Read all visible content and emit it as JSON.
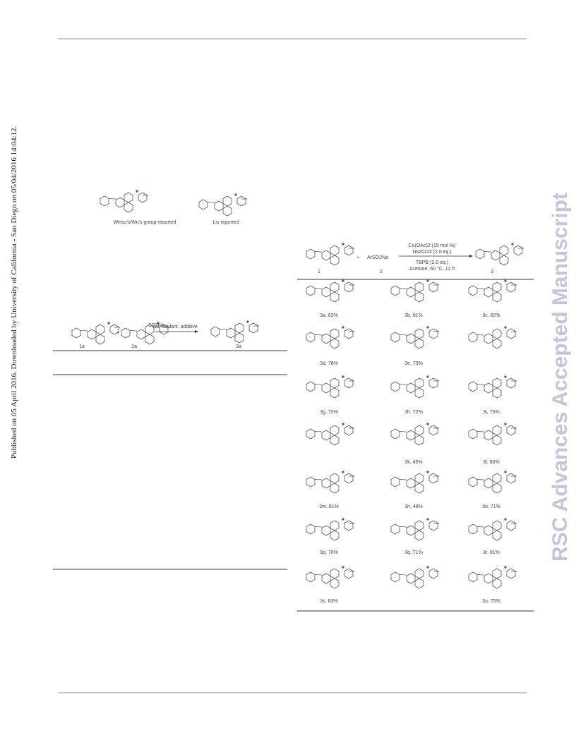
{
  "side_note": "Published on 05 April 2016. Downloaded by University of California - San Diego on 05/04/2016 14:04:12.",
  "watermark": "RSC Advances Accepted Manuscript",
  "figure": {
    "left_caption": "Weiss's/Wu's group reported",
    "right_caption": "Liu reported"
  },
  "left_scheme": {
    "sm1": "1a",
    "sm2": "2a",
    "product": "3a",
    "plus": "+",
    "reagent": "SO2Na",
    "conditions": "cat. oxidant, additive"
  },
  "right_scheme": {
    "sm1": "1",
    "sm2": "2",
    "product": "3",
    "plus": "+",
    "reagent": "ArSO2Na",
    "conditions": [
      "Cu(OAc)2 (15 mol %)",
      "Na2CO3 (2.0 eq.)",
      "TBPB (2.0 eq.)",
      "Acetone, 60 °C, 12 h"
    ]
  },
  "products": [
    "3a, 83%",
    "3b, 81%",
    "3c, 82%",
    "3d, 78%",
    "3e, 75%",
    "3g, 75%",
    "3h, 72%",
    "3i, 75%",
    "3k, 45%",
    "3l, 80%",
    "3m, 81%",
    "3n, 48%",
    "3o, 71%",
    "3p, 70%",
    "3q, 71%",
    "3r, 81%",
    "3s, 83%",
    "3u, 75%"
  ]
}
